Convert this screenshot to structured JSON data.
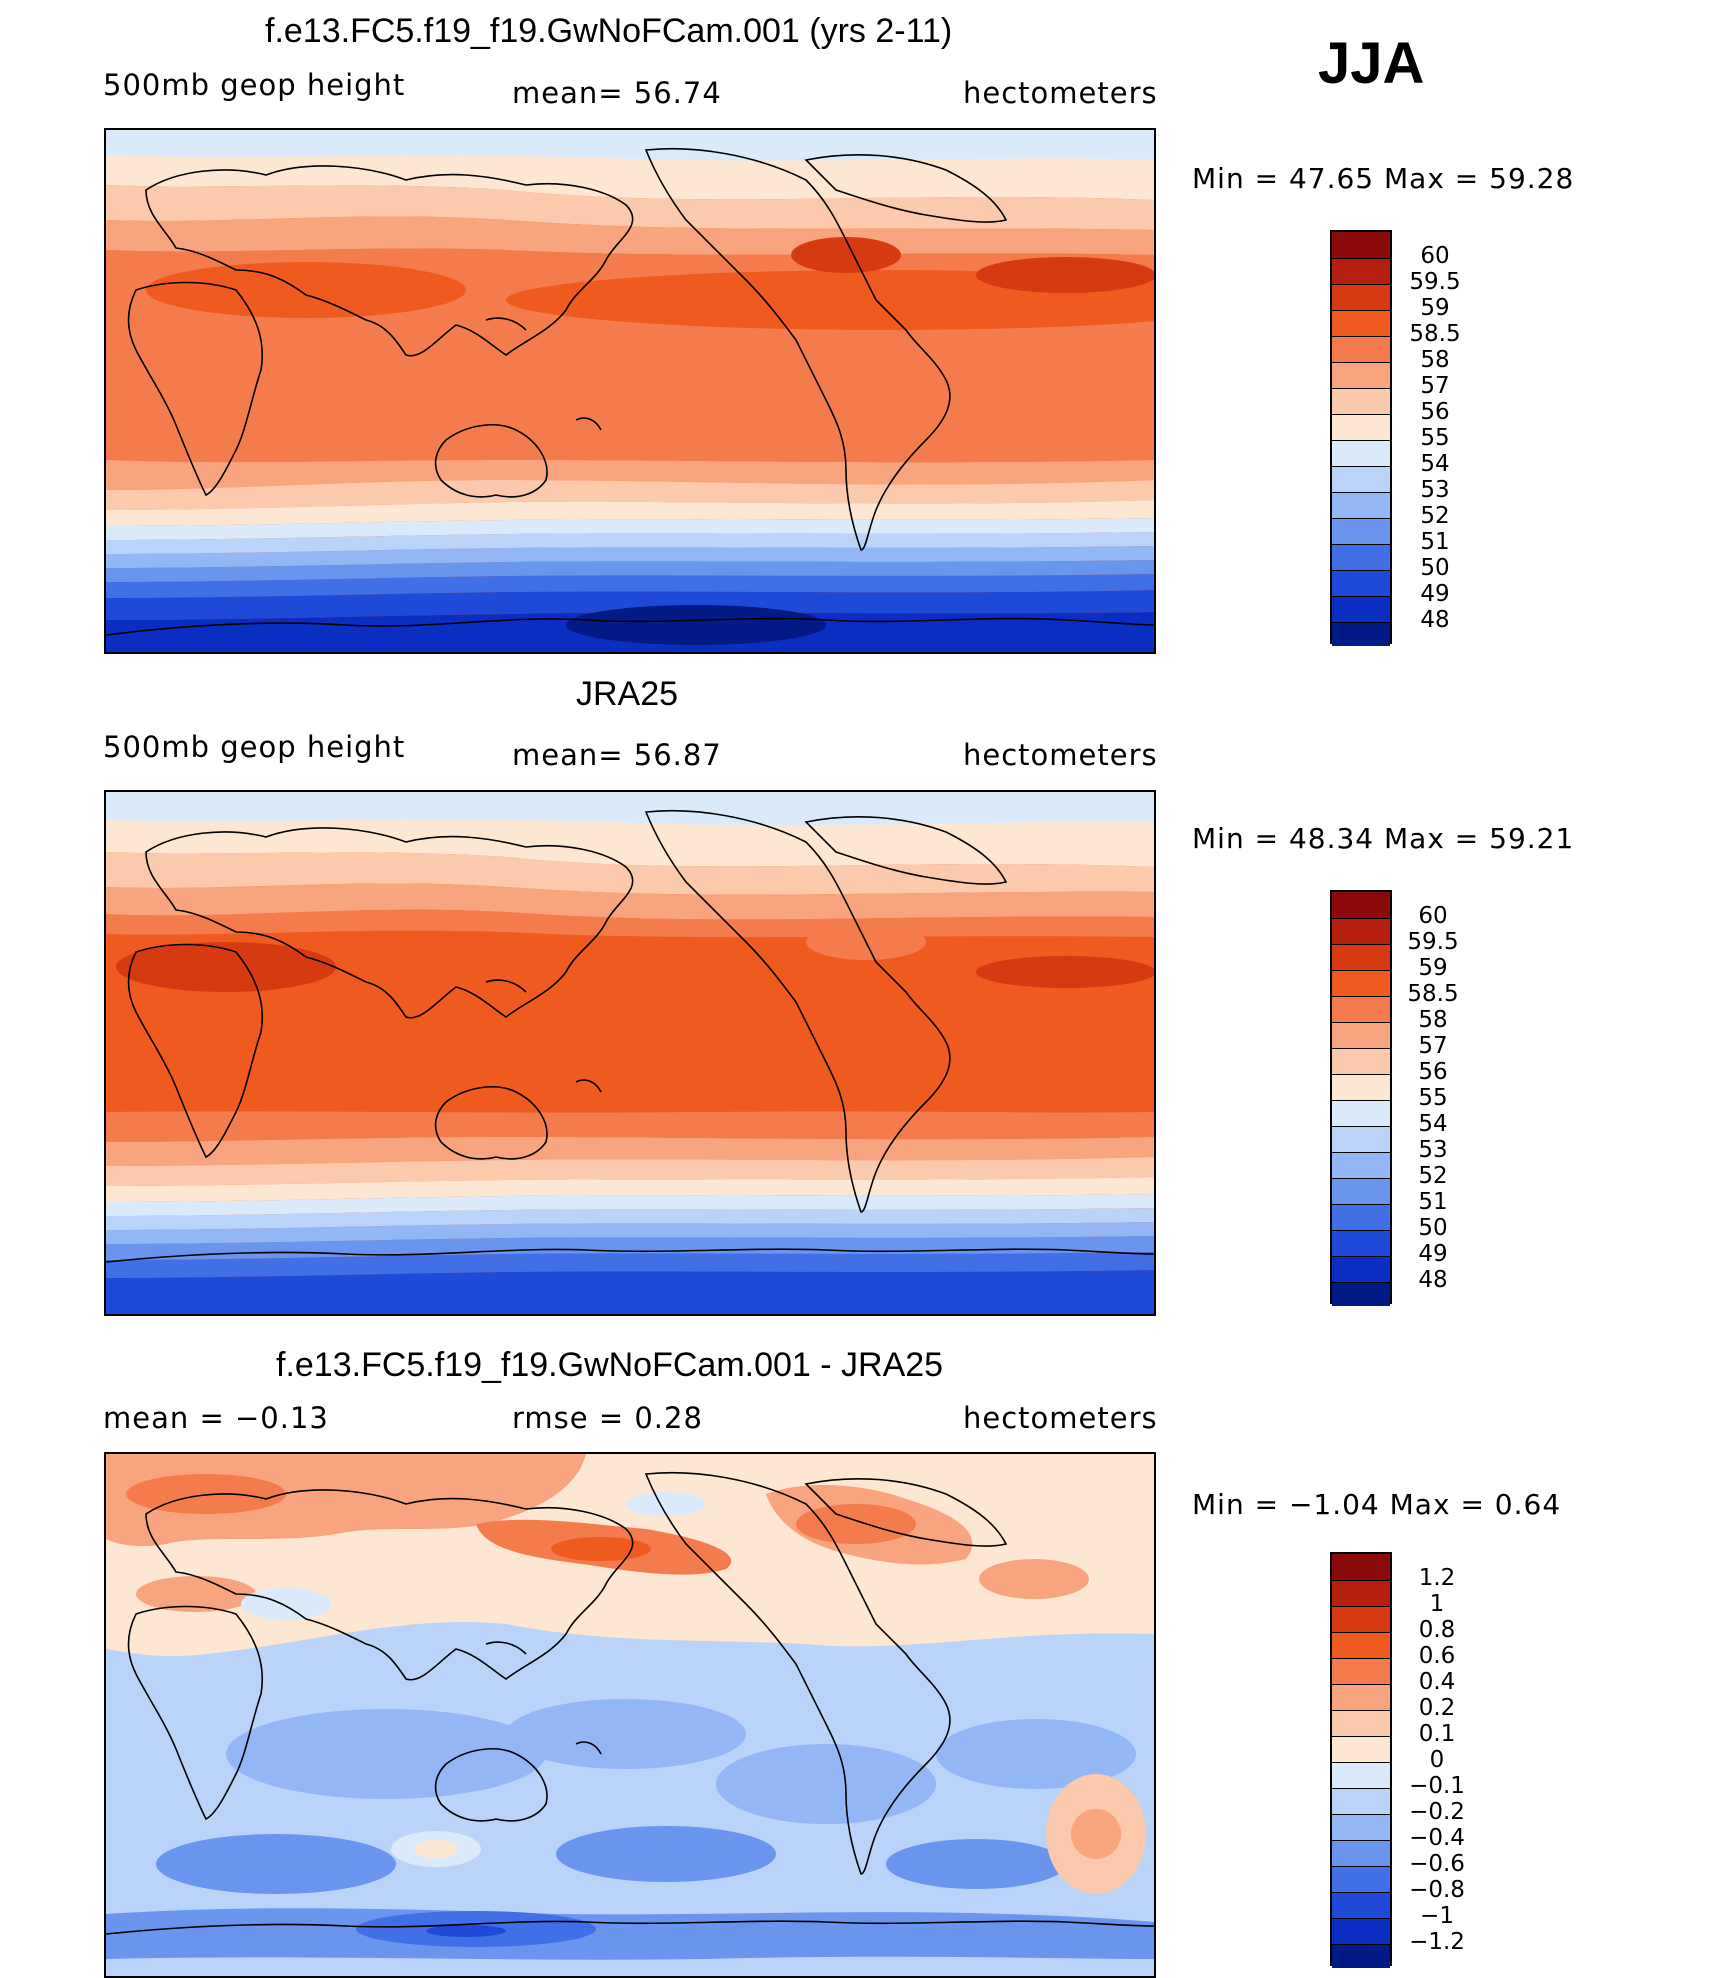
{
  "season": "JJA",
  "panels": [
    {
      "title": "f.e13.FC5.f19_f19.GwNoFCam.001 (yrs 2-11)",
      "left_label": "500mb geop height",
      "center_label": "mean=  56.74",
      "right_label": "hectometers",
      "minmax": "Min =   47.65  Max =   59.28",
      "kind": "field"
    },
    {
      "title": "JRA25",
      "left_label": "500mb geop height",
      "center_label": "mean=  56.87",
      "right_label": "hectometers",
      "minmax": "Min =   48.34  Max =   59.21",
      "kind": "field"
    },
    {
      "title": "f.e13.FC5.f19_f19.GwNoFCam.001 - JRA25",
      "left_label": "mean =   −0.13",
      "center_label": "rmse =    0.28",
      "right_label": "hectometers",
      "minmax": "Min =   −1.04  Max =    0.64",
      "kind": "diff"
    }
  ],
  "chart_data": [
    {
      "type": "heatmap",
      "title": "f.e13.FC5.f19_f19.GwNoFCam.001 (yrs 2-11)",
      "variable": "500mb geop height",
      "units": "hectometers",
      "mean": 56.74,
      "min": 47.65,
      "max": 59.28,
      "colorbar": {
        "labels": [
          "60",
          "59.5",
          "59",
          "58.5",
          "58",
          "57",
          "56",
          "55",
          "54",
          "53",
          "52",
          "51",
          "50",
          "49",
          "48"
        ],
        "colors": [
          "#8c0a0a",
          "#b5200e",
          "#d63a10",
          "#ef5a1e",
          "#f47c4c",
          "#f8a47e",
          "#fbc9ab",
          "#fde6d2",
          "#dbeafb",
          "#b9d3f9",
          "#93b6f5",
          "#6a95ee",
          "#416fe6",
          "#1f4ad8",
          "#0b2ec2",
          "#021a86"
        ]
      }
    },
    {
      "type": "heatmap",
      "title": "JRA25",
      "variable": "500mb geop height",
      "units": "hectometers",
      "mean": 56.87,
      "min": 48.34,
      "max": 59.21,
      "colorbar": {
        "labels": [
          "60",
          "59.5",
          "59",
          "58.5",
          "58",
          "57",
          "56",
          "55",
          "54",
          "53",
          "52",
          "51",
          "50",
          "49",
          "48"
        ],
        "colors": [
          "#8c0a0a",
          "#b5200e",
          "#d63a10",
          "#ef5a1e",
          "#f47c4c",
          "#f8a47e",
          "#fbc9ab",
          "#fde6d2",
          "#dbeafb",
          "#b9d3f9",
          "#93b6f5",
          "#6a95ee",
          "#416fe6",
          "#1f4ad8",
          "#0b2ec2",
          "#021a86"
        ]
      }
    },
    {
      "type": "heatmap",
      "title": "f.e13.FC5.f19_f19.GwNoFCam.001 - JRA25",
      "variable": "difference",
      "units": "hectometers",
      "mean": -0.13,
      "rmse": 0.28,
      "min": -1.04,
      "max": 0.64,
      "colorbar": {
        "labels": [
          "1.2",
          "1",
          "0.8",
          "0.6",
          "0.4",
          "0.2",
          "0.1",
          "0",
          "−0.1",
          "−0.2",
          "−0.4",
          "−0.6",
          "−0.8",
          "−1",
          "−1.2"
        ],
        "colors": [
          "#8c0a0a",
          "#b5200e",
          "#d63a10",
          "#ef5a1e",
          "#f47c4c",
          "#f8a47e",
          "#fbc9ab",
          "#fde6d2",
          "#dbeafb",
          "#b9d3f9",
          "#93b6f5",
          "#6a95ee",
          "#416fe6",
          "#1f4ad8",
          "#0b2ec2",
          "#021a86"
        ]
      }
    }
  ]
}
